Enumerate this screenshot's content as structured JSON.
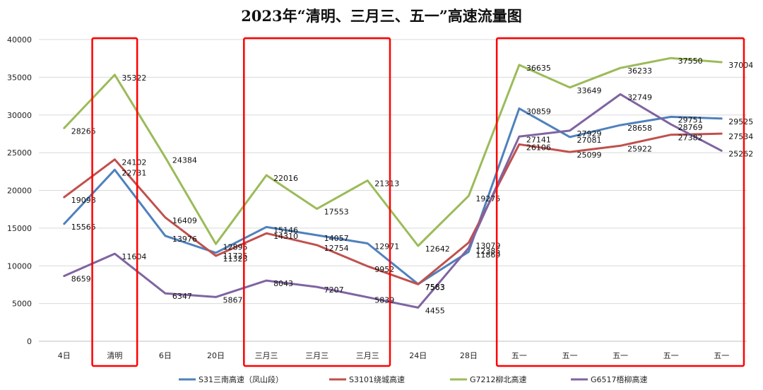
{
  "chart_data": {
    "type": "line",
    "title": "2023年“清明、三月三、五一”高速流量图",
    "xlabel": "",
    "ylabel": "",
    "categories": [
      "4日",
      "清明",
      "6日",
      "20日",
      "三月三",
      "三月三",
      "三月三",
      "24日",
      "28日",
      "五一",
      "五一",
      "五一",
      "五一",
      "五一"
    ],
    "ylim": [
      0,
      40000
    ],
    "yticks": [
      0,
      5000,
      10000,
      15000,
      20000,
      25000,
      30000,
      35000,
      40000
    ],
    "grid": "horizontal",
    "legend_position": "bottom",
    "series": [
      {
        "name": "S31三南高速（凤山段）",
        "color": "#4f81bd",
        "values": [
          15565,
          22731,
          13976,
          11725,
          15146,
          14057,
          12971,
          7583,
          11869,
          30859,
          27081,
          28658,
          29751,
          29525
        ]
      },
      {
        "name": "S3101绕城高速",
        "color": "#c0504d",
        "values": [
          19098,
          24102,
          16409,
          11323,
          14310,
          12754,
          9952,
          7563,
          13079,
          26106,
          25099,
          25922,
          27382,
          27534
        ]
      },
      {
        "name": "G7212柳北高速",
        "color": "#9bbb59",
        "values": [
          28265,
          35322,
          24384,
          12895,
          22016,
          17553,
          21313,
          12642,
          19275,
          36635,
          33649,
          36233,
          37550,
          37004
        ]
      },
      {
        "name": "G6517梧柳高速",
        "color": "#8064a2",
        "values": [
          8659,
          11604,
          6347,
          5867,
          8043,
          7207,
          5839,
          4455,
          12385,
          27141,
          27929,
          32749,
          28769,
          25262
        ]
      }
    ],
    "highlight_boxes": [
      {
        "from_category_index": 1,
        "to_category_index": 1,
        "color": "#ff0000"
      },
      {
        "from_category_index": 4,
        "to_category_index": 6,
        "color": "#ff0000"
      },
      {
        "from_category_index": 9,
        "to_category_index": 13,
        "color": "#ff0000"
      }
    ]
  }
}
